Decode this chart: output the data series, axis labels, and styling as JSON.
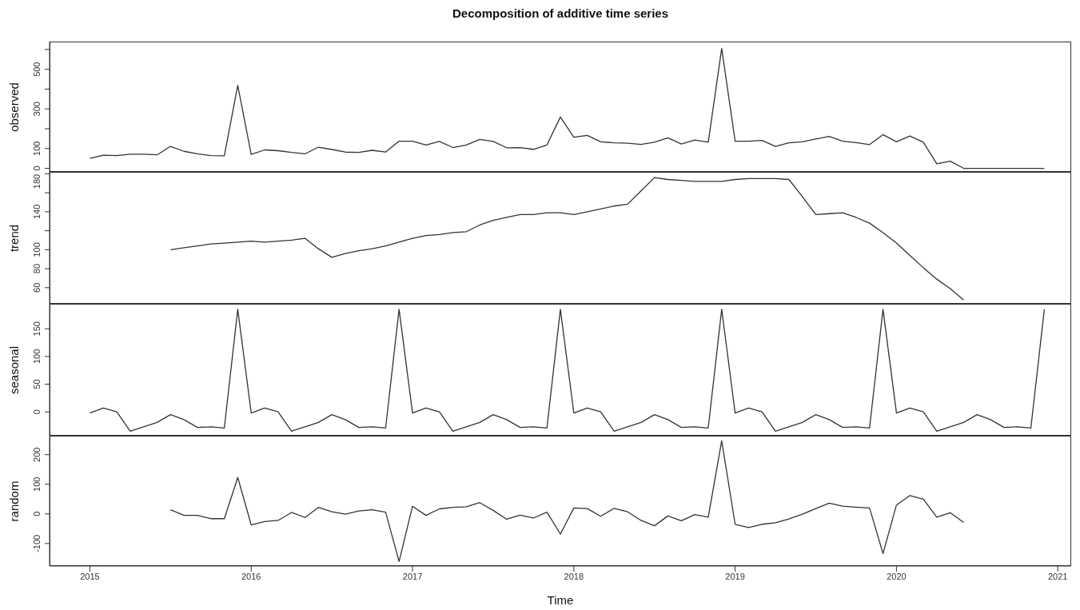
{
  "chart_data": [
    {
      "type": "line",
      "title": "Decomposition of additive time series",
      "ylabel": "observed",
      "tick_labels": "y",
      "xlim": [
        "2014-10",
        "2021-02"
      ],
      "ylim": [
        -18,
        640
      ],
      "yticks": [
        0,
        100,
        {
          "value": 200,
          "label": null
        },
        300,
        {
          "value": 400,
          "label": null
        },
        500,
        {
          "value": 600,
          "label": null
        }
      ],
      "x": [
        "2015-01",
        "2015-02",
        "2015-03",
        "2015-04",
        "2015-05",
        "2015-06",
        "2015-07",
        "2015-08",
        "2015-09",
        "2015-10",
        "2015-11",
        "2015-12",
        "2016-01",
        "2016-02",
        "2016-03",
        "2016-04",
        "2016-05",
        "2016-06",
        "2016-07",
        "2016-08",
        "2016-09",
        "2016-10",
        "2016-11",
        "2016-12",
        "2017-01",
        "2017-02",
        "2017-03",
        "2017-04",
        "2017-05",
        "2017-06",
        "2017-07",
        "2017-08",
        "2017-09",
        "2017-10",
        "2017-11",
        "2017-12",
        "2018-01",
        "2018-02",
        "2018-03",
        "2018-04",
        "2018-05",
        "2018-06",
        "2018-07",
        "2018-08",
        "2018-09",
        "2018-10",
        "2018-11",
        "2018-12",
        "2019-01",
        "2019-02",
        "2019-03",
        "2019-04",
        "2019-05",
        "2019-06",
        "2019-07",
        "2019-08",
        "2019-09",
        "2019-10",
        "2019-11",
        "2019-12",
        "2020-01",
        "2020-02",
        "2020-03",
        "2020-04",
        "2020-05",
        "2020-06",
        "2020-07",
        "2020-08",
        "2020-09",
        "2020-10",
        "2020-11",
        "2020-12"
      ],
      "series": [
        {
          "color": "#333333",
          "values": [
            50,
            66,
            64,
            71,
            71,
            68,
            111,
            86,
            73,
            64,
            63,
            418,
            70,
            93,
            89,
            80,
            73,
            107,
            95,
            82,
            80,
            91,
            82,
            137,
            137,
            118,
            136,
            105,
            118,
            146,
            136,
            104,
            105,
            96,
            118,
            259,
            157,
            166,
            134,
            129,
            127,
            121,
            132,
            154,
            123,
            143,
            132,
            605,
            137,
            137,
            141,
            111,
            129,
            134,
            148,
            161,
            137,
            130,
            120,
            170,
            134,
            163,
            132,
            23,
            36,
            0,
            0,
            0,
            0,
            0,
            0,
            0
          ]
        }
      ]
    },
    {
      "type": "line",
      "ylabel": "trend",
      "tick_labels": "y",
      "xlim": [
        "2014-10",
        "2021-02"
      ],
      "ylim": [
        43,
        182
      ],
      "yticks": [
        60,
        80,
        100,
        {
          "value": 120,
          "label": null
        },
        140,
        {
          "value": 160,
          "label": null
        },
        180
      ],
      "x": [
        "2015-07",
        "2015-08",
        "2015-09",
        "2015-10",
        "2015-11",
        "2015-12",
        "2016-01",
        "2016-02",
        "2016-03",
        "2016-04",
        "2016-05",
        "2016-06",
        "2016-07",
        "2016-08",
        "2016-09",
        "2016-10",
        "2016-11",
        "2016-12",
        "2017-01",
        "2017-02",
        "2017-03",
        "2017-04",
        "2017-05",
        "2017-06",
        "2017-07",
        "2017-08",
        "2017-09",
        "2017-10",
        "2017-11",
        "2017-12",
        "2018-01",
        "2018-02",
        "2018-03",
        "2018-04",
        "2018-05",
        "2018-06",
        "2018-07",
        "2018-08",
        "2018-09",
        "2018-10",
        "2018-11",
        "2018-12",
        "2019-01",
        "2019-02",
        "2019-03",
        "2019-04",
        "2019-05",
        "2019-06",
        "2019-07",
        "2019-08",
        "2019-09",
        "2019-10",
        "2019-11",
        "2019-12",
        "2020-01",
        "2020-02",
        "2020-03",
        "2020-04",
        "2020-05",
        "2020-06"
      ],
      "series": [
        {
          "color": "#333333",
          "values": [
            100,
            102,
            104,
            106,
            107,
            108,
            109,
            108,
            109,
            110,
            112,
            101,
            92,
            96,
            99,
            101,
            104,
            108,
            112,
            115,
            116,
            118,
            119,
            126,
            131,
            134,
            137,
            137,
            139,
            139,
            137,
            140,
            143,
            146,
            148,
            162,
            176,
            174,
            173,
            172,
            172,
            172,
            174,
            175,
            175,
            175,
            174,
            156,
            137,
            138,
            139,
            134,
            128,
            118,
            107,
            94,
            81,
            69,
            59,
            47
          ]
        }
      ]
    },
    {
      "type": "line",
      "ylabel": "seasonal",
      "tick_labels": "y",
      "xlim": [
        "2014-10",
        "2021-02"
      ],
      "ylim": [
        -43,
        195
      ],
      "yticks": [
        0,
        50,
        100,
        150
      ],
      "x": [
        "2015-01",
        "2015-02",
        "2015-03",
        "2015-04",
        "2015-05",
        "2015-06",
        "2015-07",
        "2015-08",
        "2015-09",
        "2015-10",
        "2015-11",
        "2015-12",
        "2016-01",
        "2016-02",
        "2016-03",
        "2016-04",
        "2016-05",
        "2016-06",
        "2016-07",
        "2016-08",
        "2016-09",
        "2016-10",
        "2016-11",
        "2016-12",
        "2017-01",
        "2017-02",
        "2017-03",
        "2017-04",
        "2017-05",
        "2017-06",
        "2017-07",
        "2017-08",
        "2017-09",
        "2017-10",
        "2017-11",
        "2017-12",
        "2018-01",
        "2018-02",
        "2018-03",
        "2018-04",
        "2018-05",
        "2018-06",
        "2018-07",
        "2018-08",
        "2018-09",
        "2018-10",
        "2018-11",
        "2018-12",
        "2019-01",
        "2019-02",
        "2019-03",
        "2019-04",
        "2019-05",
        "2019-06",
        "2019-07",
        "2019-08",
        "2019-09",
        "2019-10",
        "2019-11",
        "2019-12",
        "2020-01",
        "2020-02",
        "2020-03",
        "2020-04",
        "2020-05",
        "2020-06",
        "2020-07",
        "2020-08",
        "2020-09",
        "2020-10",
        "2020-11",
        "2020-12"
      ],
      "series": [
        {
          "color": "#333333",
          "values": [
            -2,
            7,
            0,
            -35,
            -27,
            -19,
            -5,
            -14,
            -28,
            -27,
            -29,
            185,
            -2,
            7,
            0,
            -35,
            -27,
            -19,
            -5,
            -14,
            -28,
            -27,
            -29,
            185,
            -2,
            7,
            0,
            -35,
            -27,
            -19,
            -5,
            -14,
            -28,
            -27,
            -29,
            185,
            -2,
            7,
            0,
            -35,
            -27,
            -19,
            -5,
            -14,
            -28,
            -27,
            -29,
            185,
            -2,
            7,
            0,
            -35,
            -27,
            -19,
            -5,
            -14,
            -28,
            -27,
            -29,
            185,
            -2,
            7,
            0,
            -35,
            -27,
            -19,
            -5,
            -14,
            -28,
            -27,
            -29,
            185
          ]
        }
      ]
    },
    {
      "type": "line",
      "ylabel": "random",
      "xlabel": "Time",
      "xlim": [
        "2014-10",
        "2021-02"
      ],
      "xticks": [
        {
          "value": "2015",
          "label": "2015"
        },
        {
          "value": "2016",
          "label": "2016"
        },
        {
          "value": "2017",
          "label": "2017"
        },
        {
          "value": "2018",
          "label": "2018"
        },
        {
          "value": "2019",
          "label": "2019"
        },
        {
          "value": "2020",
          "label": "2020"
        },
        {
          "value": "2021",
          "label": "2021"
        }
      ],
      "ylim": [
        -176,
        264
      ],
      "yticks": [
        -100,
        0,
        100,
        200
      ],
      "x": [
        "2015-07",
        "2015-08",
        "2015-09",
        "2015-10",
        "2015-11",
        "2015-12",
        "2016-01",
        "2016-02",
        "2016-03",
        "2016-04",
        "2016-05",
        "2016-06",
        "2016-07",
        "2016-08",
        "2016-09",
        "2016-10",
        "2016-11",
        "2016-12",
        "2017-01",
        "2017-02",
        "2017-03",
        "2017-04",
        "2017-05",
        "2017-06",
        "2017-07",
        "2017-08",
        "2017-09",
        "2017-10",
        "2017-11",
        "2017-12",
        "2018-01",
        "2018-02",
        "2018-03",
        "2018-04",
        "2018-05",
        "2018-06",
        "2018-07",
        "2018-08",
        "2018-09",
        "2018-10",
        "2018-11",
        "2018-12",
        "2019-01",
        "2019-02",
        "2019-03",
        "2019-04",
        "2019-05",
        "2019-06",
        "2019-07",
        "2019-08",
        "2019-09",
        "2019-10",
        "2019-11",
        "2019-12",
        "2020-01",
        "2020-02",
        "2020-03",
        "2020-04",
        "2020-05",
        "2020-06"
      ],
      "series": [
        {
          "color": "#333333",
          "values": [
            14,
            -5,
            -5,
            -16,
            -16,
            123,
            -37,
            -26,
            -22,
            5,
            -12,
            22,
            7,
            -1,
            10,
            14,
            6,
            -161,
            26,
            -5,
            17,
            22,
            24,
            38,
            12,
            -18,
            -4,
            -14,
            6,
            -68,
            20,
            18,
            -8,
            19,
            7,
            -22,
            -40,
            -7,
            -23,
            -2,
            -11,
            247,
            -35,
            -46,
            -35,
            -30,
            -17,
            -1,
            18,
            36,
            26,
            23,
            20,
            -134,
            30,
            62,
            50,
            -11,
            4,
            -29
          ]
        }
      ]
    }
  ]
}
